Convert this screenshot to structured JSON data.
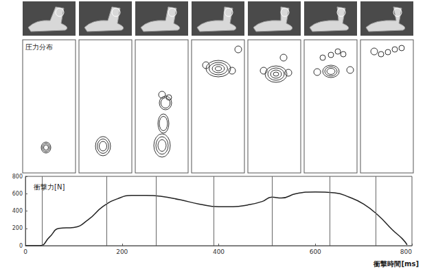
{
  "chart_data": {
    "type": "line",
    "y_label": "衝撃力[N]",
    "x_label": "衝撃時間[ms]",
    "x": [
      0,
      30,
      50,
      70,
      100,
      130,
      160,
      190,
      220,
      250,
      280,
      320,
      360,
      400,
      430,
      460,
      490,
      510,
      530,
      560,
      600,
      640,
      670,
      700,
      730,
      760,
      780,
      790
    ],
    "values": [
      0,
      0,
      100,
      200,
      210,
      300,
      450,
      540,
      580,
      580,
      570,
      530,
      480,
      450,
      450,
      470,
      510,
      560,
      550,
      600,
      620,
      610,
      560,
      480,
      350,
      180,
      80,
      10
    ],
    "markers_x": [
      34,
      168,
      271,
      390,
      511,
      630,
      725
    ],
    "color": "#222222",
    "xlim": [
      0,
      800
    ],
    "xticks": [
      0,
      200,
      400,
      600,
      800
    ],
    "ylim": [
      0,
      800
    ],
    "yticks": [
      0,
      200,
      400,
      600,
      800
    ],
    "grid": false
  },
  "pressure_panels": {
    "title": "圧力分布"
  }
}
